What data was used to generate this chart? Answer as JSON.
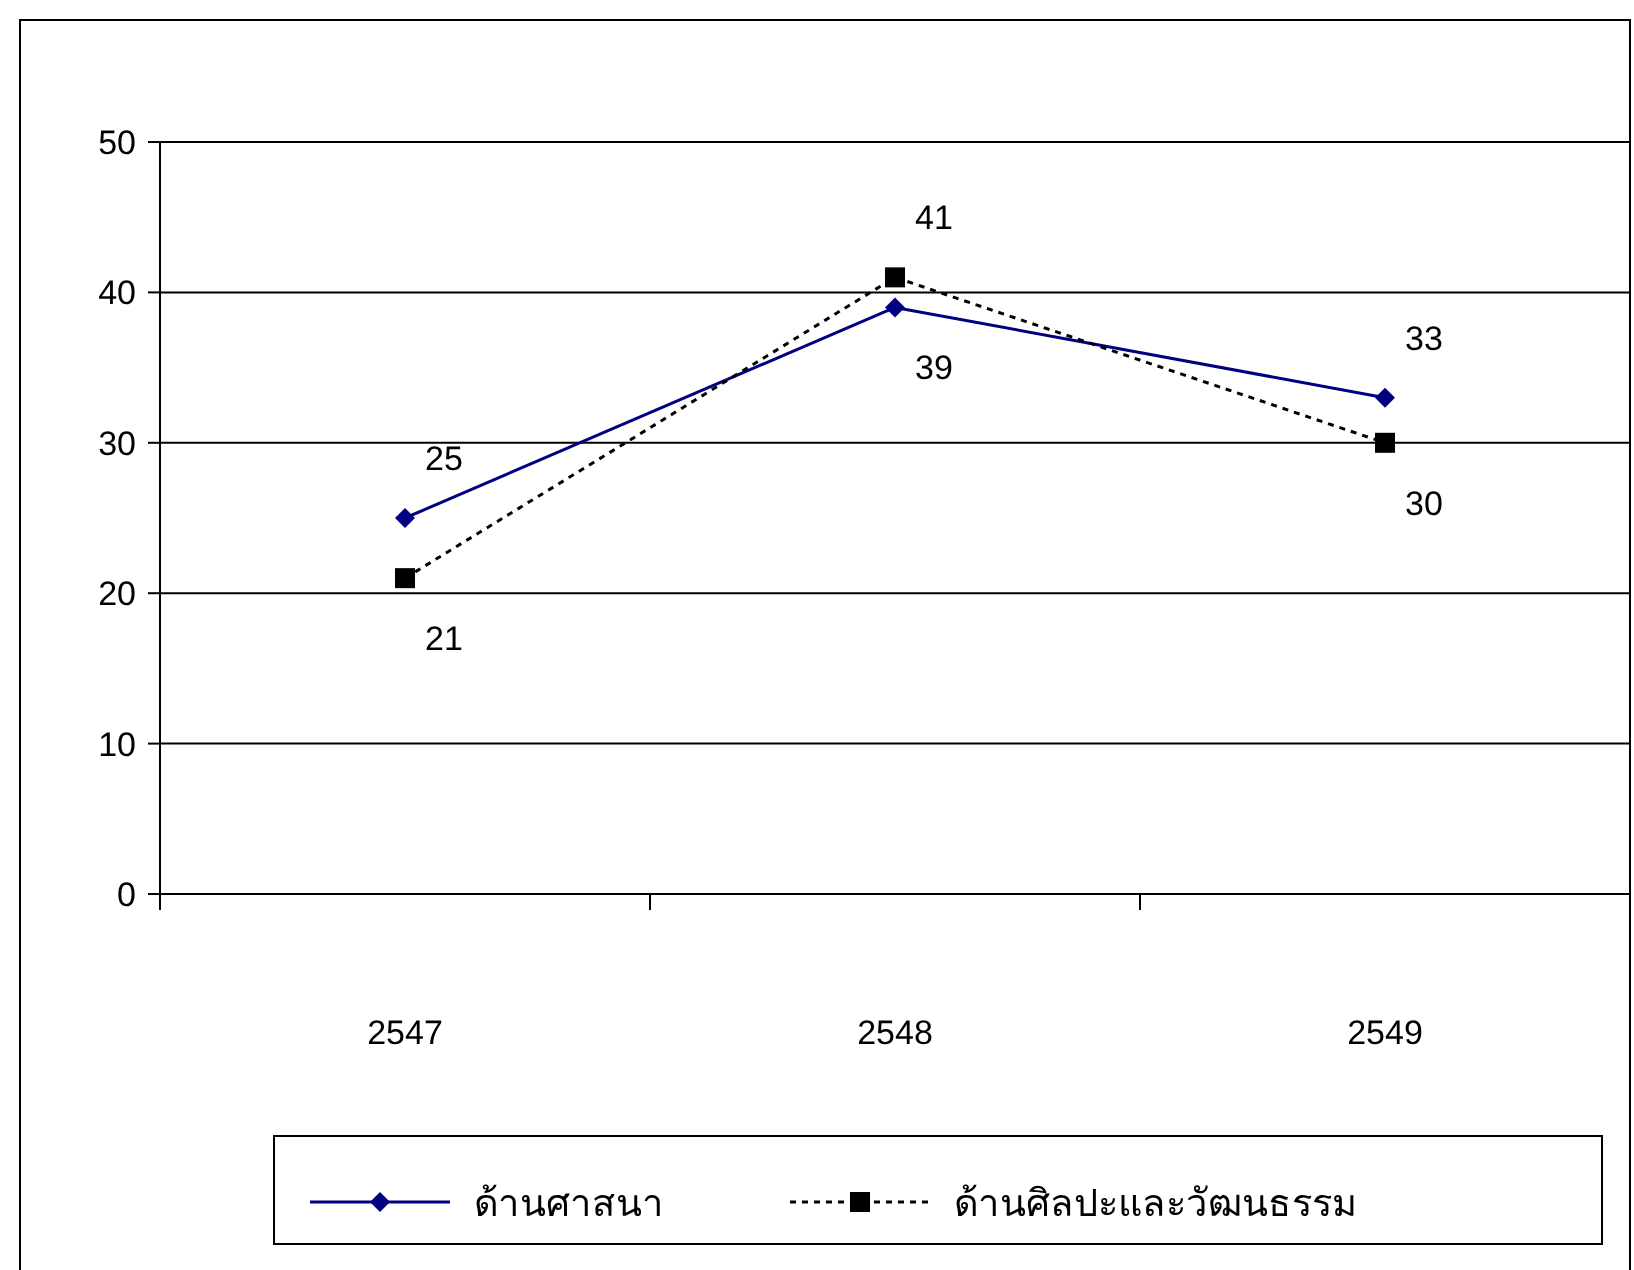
{
  "chart_data": {
    "type": "line",
    "categories": [
      "2547",
      "2548",
      "2549"
    ],
    "series": [
      {
        "name": "ด้านศาสนา",
        "color": "#000080",
        "values": [
          25,
          39,
          33
        ],
        "marker": "diamond",
        "line_style": "solid"
      },
      {
        "name": "ด้านศิลปะและวัฒนธรรม",
        "color": "#000000",
        "values": [
          21,
          41,
          30
        ],
        "marker": "square",
        "line_style": "dotted"
      }
    ],
    "ylim": [
      0,
      50
    ],
    "yticks": [
      0,
      10,
      20,
      30,
      40,
      50
    ],
    "grid": "y",
    "legend": "bottom",
    "data_labels": true
  }
}
